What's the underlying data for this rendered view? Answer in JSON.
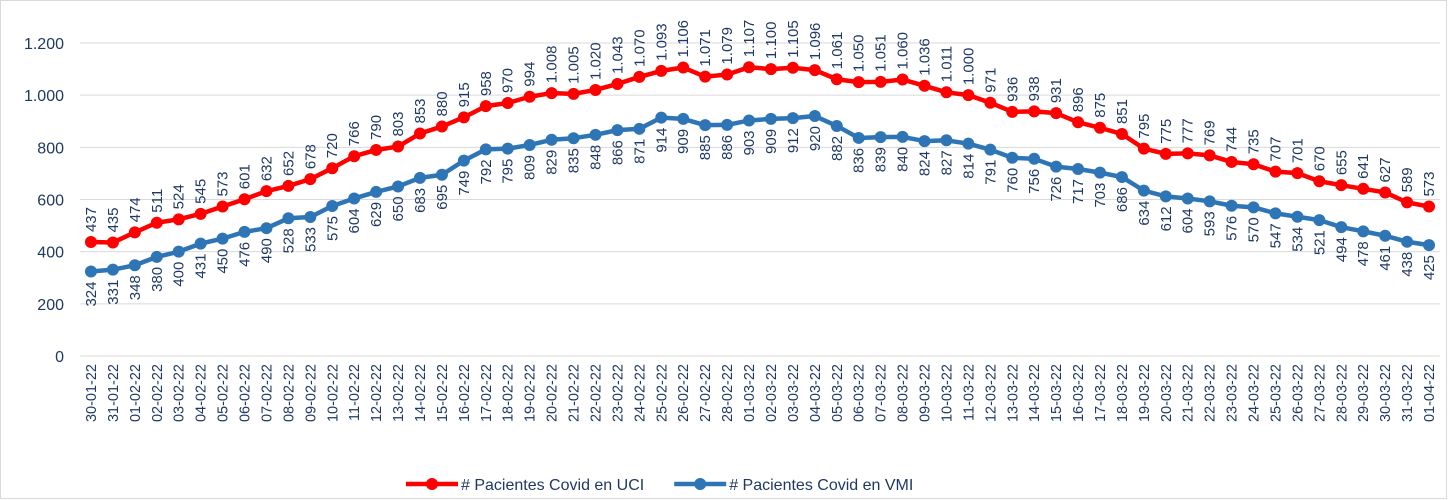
{
  "chart_data": {
    "type": "line",
    "categories": [
      "30-01-22",
      "31-01-22",
      "01-02-22",
      "02-02-22",
      "03-02-22",
      "04-02-22",
      "05-02-22",
      "06-02-22",
      "07-02-22",
      "08-02-22",
      "09-02-22",
      "10-02-22",
      "11-02-22",
      "12-02-22",
      "13-02-22",
      "14-02-22",
      "15-02-22",
      "16-02-22",
      "17-02-22",
      "18-02-22",
      "19-02-22",
      "20-02-22",
      "21-02-22",
      "22-02-22",
      "23-02-22",
      "24-02-22",
      "25-02-22",
      "26-02-22",
      "27-02-22",
      "28-02-22",
      "01-03-22",
      "02-03-22",
      "03-03-22",
      "04-03-22",
      "05-03-22",
      "06-03-22",
      "07-03-22",
      "08-03-22",
      "09-03-22",
      "10-03-22",
      "11-03-22",
      "12-03-22",
      "13-03-22",
      "14-03-22",
      "15-03-22",
      "16-03-22",
      "17-03-22",
      "18-03-22",
      "19-03-22",
      "20-03-22",
      "21-03-22",
      "22-03-22",
      "23-03-22",
      "24-03-22",
      "25-03-22",
      "26-03-22",
      "27-03-22",
      "28-03-22",
      "29-03-22",
      "30-03-22",
      "31-03-22",
      "01-04-22"
    ],
    "series": [
      {
        "name": "# Pacientes Covid en UCI",
        "color": "#ff0000",
        "values": [
          437,
          435,
          474,
          511,
          524,
          545,
          573,
          601,
          632,
          652,
          678,
          720,
          766,
          790,
          803,
          853,
          880,
          915,
          958,
          970,
          994,
          1008,
          1005,
          1020,
          1043,
          1070,
          1093,
          1106,
          1071,
          1079,
          1107,
          1100,
          1105,
          1096,
          1061,
          1050,
          1051,
          1060,
          1036,
          1011,
          1000,
          971,
          936,
          938,
          931,
          896,
          875,
          851,
          795,
          775,
          777,
          769,
          744,
          735,
          707,
          701,
          670,
          655,
          641,
          627,
          589,
          573
        ],
        "value_labels": [
          "437",
          "435",
          "474",
          "511",
          "524",
          "545",
          "573",
          "601",
          "632",
          "652",
          "678",
          "720",
          "766",
          "790",
          "803",
          "853",
          "880",
          "915",
          "958",
          "970",
          "994",
          "1.008",
          "1.005",
          "1.020",
          "1.043",
          "1.070",
          "1.093",
          "1.106",
          "1.071",
          "1.079",
          "1.107",
          "1.100",
          "1.105",
          "1.096",
          "1.061",
          "1.050",
          "1.051",
          "1.060",
          "1.036",
          "1.011",
          "1.000",
          "971",
          "936",
          "938",
          "931",
          "896",
          "875",
          "851",
          "795",
          "775",
          "777",
          "769",
          "744",
          "735",
          "707",
          "701",
          "670",
          "655",
          "641",
          "627",
          "589",
          "573"
        ]
      },
      {
        "name": "# Pacientes Covid en VMI",
        "color": "#2e75b6",
        "values": [
          324,
          331,
          348,
          380,
          400,
          431,
          450,
          476,
          490,
          528,
          533,
          575,
          604,
          629,
          650,
          683,
          695,
          749,
          792,
          795,
          809,
          829,
          835,
          848,
          866,
          871,
          914,
          909,
          885,
          886,
          903,
          909,
          912,
          920,
          882,
          836,
          839,
          840,
          824,
          827,
          814,
          791,
          760,
          756,
          726,
          717,
          703,
          686,
          634,
          612,
          604,
          593,
          576,
          570,
          547,
          534,
          521,
          494,
          478,
          461,
          438,
          425
        ]
      }
    ],
    "ylim": [
      0,
      1200
    ],
    "yticks": [
      0,
      200,
      400,
      600,
      800,
      {
        "value": 1000,
        "label": "1.000"
      },
      {
        "value": 1200,
        "label": "1.200"
      }
    ],
    "grid": true,
    "legend": "bottom"
  }
}
